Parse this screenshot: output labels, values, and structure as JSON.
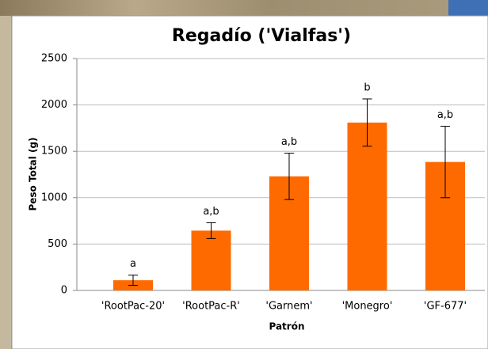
{
  "chart_data": {
    "type": "bar",
    "title": "Regadío ('Vialfas')",
    "x_label": "Patrón",
    "y_label": "Peso Total (g)",
    "categories": [
      "'RootPac-20'",
      "'RootPac-R'",
      "'Garnem'",
      "'Monegro'",
      "'GF-677'"
    ],
    "values": [
      110,
      645,
      1230,
      1810,
      1385
    ],
    "errors": [
      55,
      85,
      250,
      255,
      385
    ],
    "significance": [
      "a",
      "a,b",
      "a,b",
      "b",
      "a,b"
    ],
    "color": "#ff6a00",
    "ylim": [
      0,
      2500
    ],
    "yticks": [
      0,
      500,
      1000,
      1500,
      2000,
      2500
    ],
    "grid": true
  }
}
